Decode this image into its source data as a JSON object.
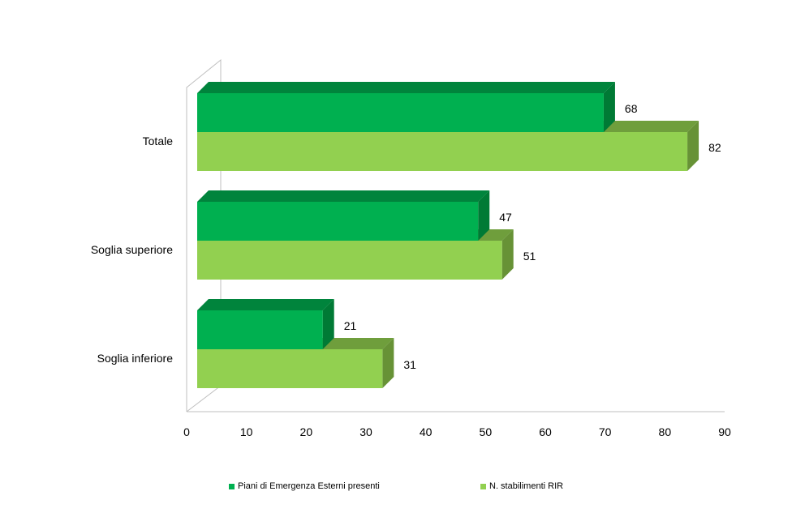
{
  "chart_data": {
    "type": "bar",
    "orientation": "horizontal",
    "style": "3d",
    "categories": [
      "Totale",
      "Soglia superiore",
      "Soglia inferiore"
    ],
    "series": [
      {
        "name": "Piani di Emergenza  Esterni presenti",
        "values": [
          68,
          47,
          21
        ],
        "color": "#00b050"
      },
      {
        "name": "N. stabilimenti  RIR",
        "values": [
          82,
          51,
          31
        ],
        "color": "#92d050"
      }
    ],
    "xlim": [
      0,
      90
    ],
    "ticks": [
      "0",
      "10",
      "20",
      "30",
      "40",
      "50",
      "60",
      "70",
      "80",
      "90"
    ],
    "grid": false,
    "legend_position": "bottom"
  }
}
